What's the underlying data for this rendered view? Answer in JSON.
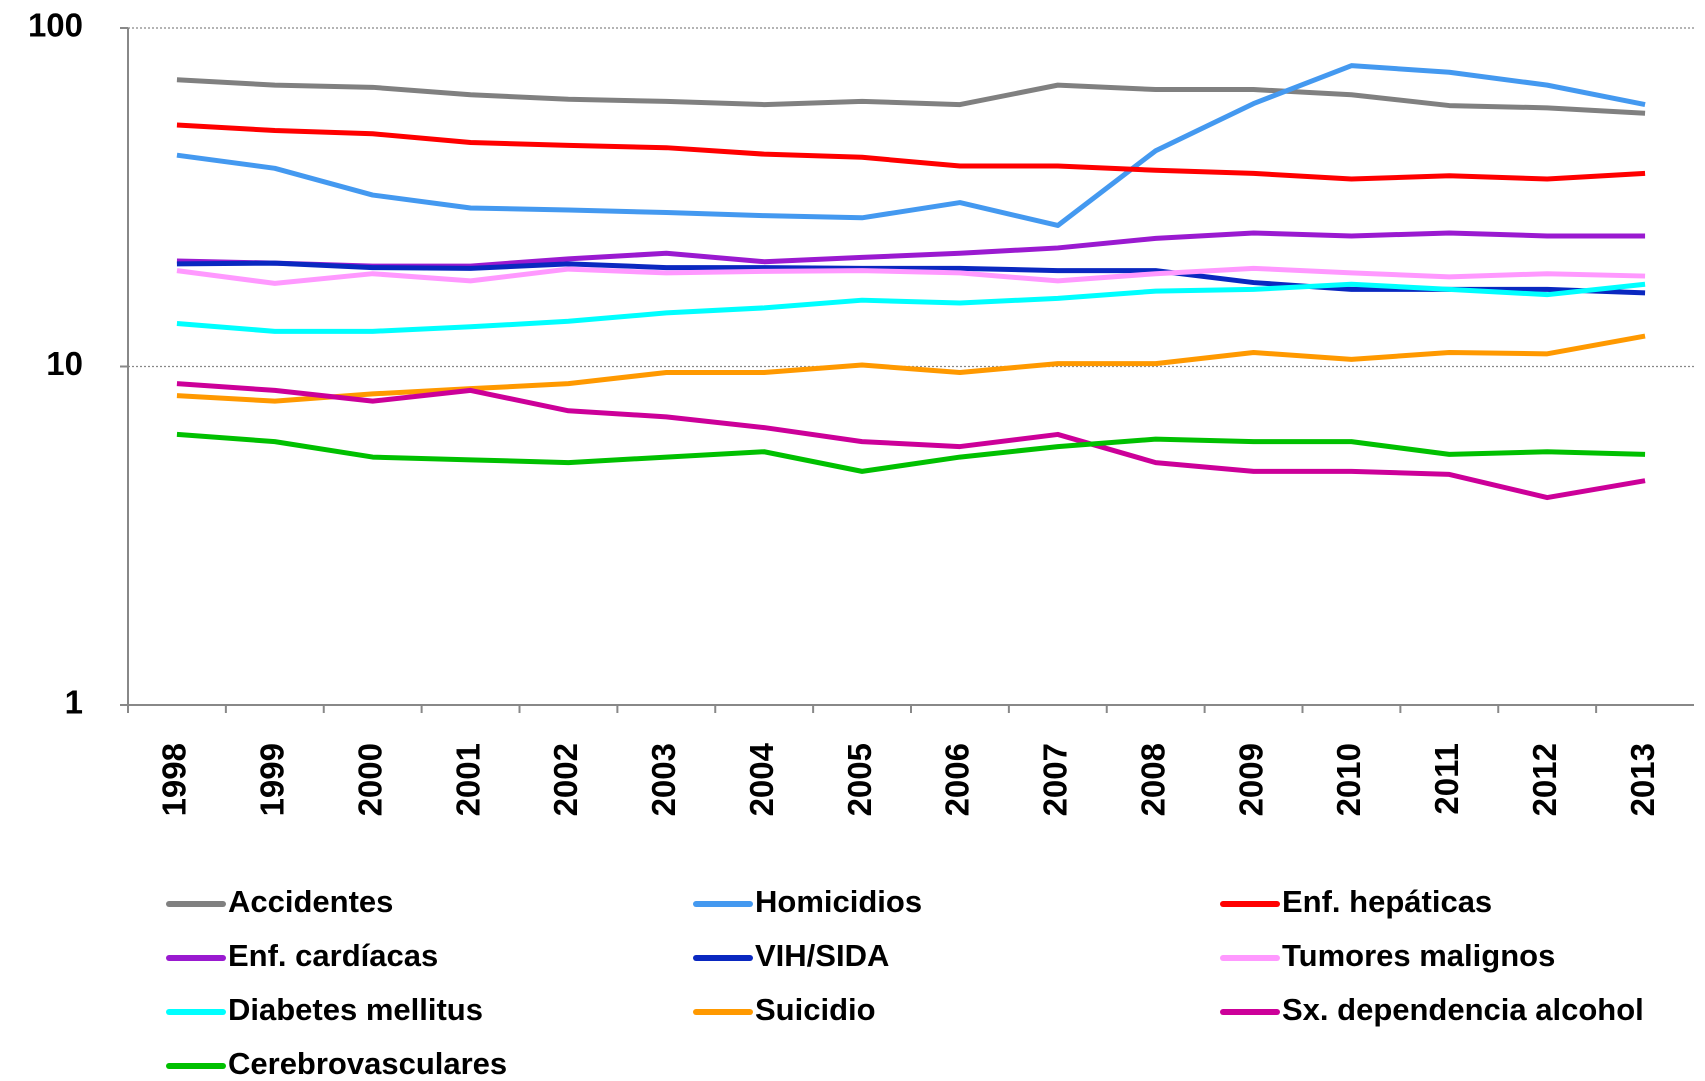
{
  "chart_data": {
    "type": "line",
    "yscale": "log",
    "grid": true,
    "ylim": [
      1,
      100
    ],
    "yticks": [
      1,
      10,
      100
    ],
    "categories": [
      "1998",
      "1999",
      "2000",
      "2001",
      "2002",
      "2003",
      "2004",
      "2005",
      "2006",
      "2007",
      "2008",
      "2009",
      "2010",
      "2011",
      "2012",
      "2013"
    ],
    "series": [
      {
        "name": "Accidentes",
        "color": "#808080",
        "values": [
          70.3,
          67.8,
          66.8,
          63.5,
          61.6,
          60.7,
          59.4,
          60.7,
          59.4,
          67.8,
          65.8,
          65.8,
          63.5,
          59.0,
          58.1,
          56.0
        ]
      },
      {
        "name": "Homicidios",
        "color": "#4499f0",
        "values": [
          42.1,
          38.5,
          32.1,
          29.4,
          29.0,
          28.5,
          27.9,
          27.5,
          30.5,
          26.1,
          43.4,
          59.8,
          77.4,
          74.0,
          67.8,
          59.4
        ]
      },
      {
        "name": "Enf. hepáticas",
        "color": "#ff0000",
        "values": [
          51.7,
          49.8,
          48.7,
          45.9,
          45.0,
          44.3,
          42.4,
          41.5,
          39.1,
          39.1,
          38.0,
          37.2,
          35.8,
          36.6,
          35.8,
          37.2
        ]
      },
      {
        "name": "Enf. cardíacas",
        "color": "#9a1ad0",
        "values": [
          20.5,
          20.2,
          19.8,
          19.8,
          20.8,
          21.6,
          20.4,
          21.0,
          21.6,
          22.4,
          23.9,
          24.8,
          24.3,
          24.8,
          24.3,
          24.3
        ]
      },
      {
        "name": "VIH/SIDA",
        "color": "#0a28c0",
        "values": [
          20.1,
          20.2,
          19.6,
          19.5,
          20.1,
          19.6,
          19.6,
          19.5,
          19.5,
          19.2,
          19.2,
          17.7,
          16.9,
          16.9,
          16.9,
          16.5
        ]
      },
      {
        "name": "Tumores malignos",
        "color": "#ff99ff",
        "values": [
          19.2,
          17.6,
          18.8,
          17.9,
          19.4,
          18.9,
          19.1,
          19.2,
          18.9,
          17.9,
          18.8,
          19.5,
          18.9,
          18.4,
          18.8,
          18.5
        ]
      },
      {
        "name": "Diabetes mellitus",
        "color": "#00ffff",
        "values": [
          13.4,
          12.7,
          12.7,
          13.1,
          13.6,
          14.4,
          14.9,
          15.7,
          15.4,
          15.9,
          16.7,
          16.9,
          17.5,
          16.9,
          16.3,
          17.5
        ]
      },
      {
        "name": "Suicidio",
        "color": "#ff9900",
        "values": [
          8.2,
          7.9,
          8.3,
          8.6,
          8.9,
          9.6,
          9.6,
          10.1,
          9.6,
          10.2,
          10.2,
          11.0,
          10.5,
          11.0,
          10.9,
          12.3
        ]
      },
      {
        "name": "Sx. dependencia alcohol",
        "color": "#cc0099",
        "values": [
          8.9,
          8.5,
          7.9,
          8.5,
          7.4,
          7.1,
          6.6,
          6.0,
          5.8,
          6.3,
          5.2,
          4.9,
          4.9,
          4.8,
          4.1,
          4.6
        ]
      },
      {
        "name": "Cerebrovasculares",
        "color": "#00c000",
        "values": [
          6.3,
          6.0,
          5.4,
          5.3,
          5.2,
          5.4,
          5.6,
          4.9,
          5.4,
          5.8,
          6.1,
          6.0,
          6.0,
          5.5,
          5.6,
          5.5
        ]
      }
    ]
  }
}
